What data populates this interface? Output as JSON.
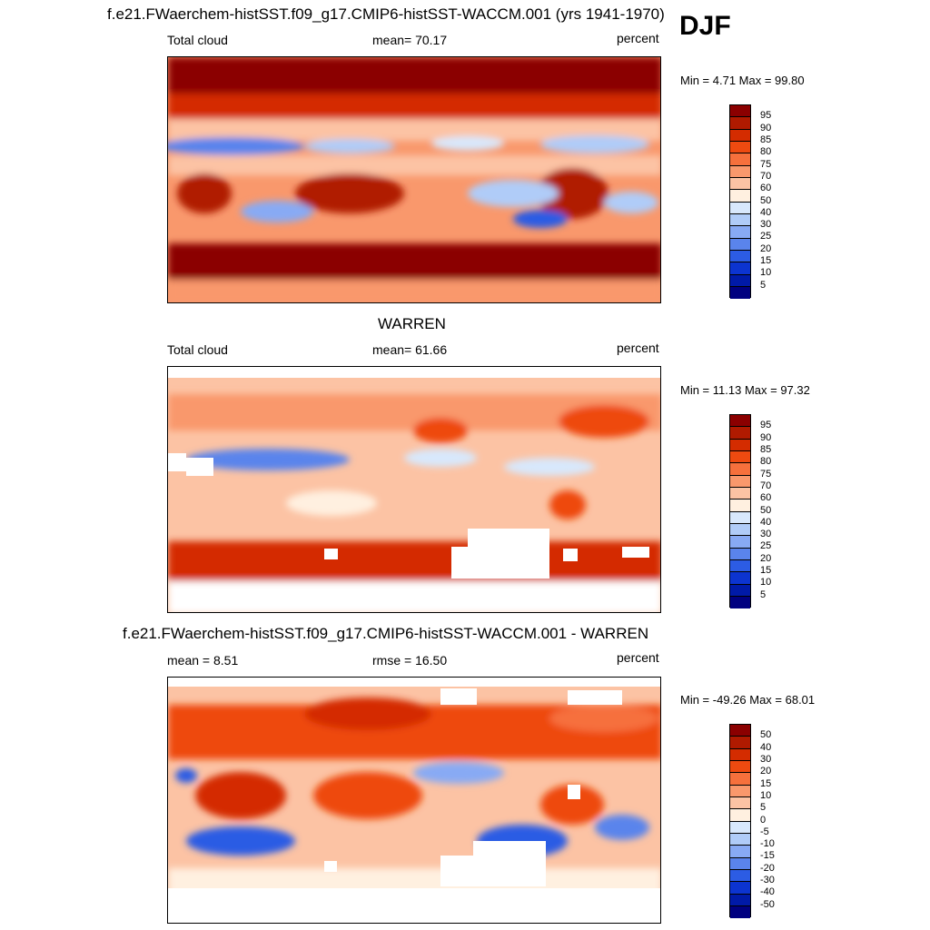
{
  "season": "DJF",
  "panels": [
    {
      "title": "f.e21.FWaerchem-histSST.f09_g17.CMIP6-histSST-WACCM.001 (yrs 1941-1970)",
      "left_label": "Total cloud",
      "center_label": "mean=  70.17",
      "right_label": "percent",
      "minmax": "Min =   4.71 Max =  99.80",
      "colorbar": {
        "levels": [
          "95",
          "90",
          "85",
          "80",
          "75",
          "70",
          "60",
          "50",
          "40",
          "30",
          "25",
          "20",
          "15",
          "10",
          "5"
        ],
        "colors": [
          "#8b0000",
          "#b01a00",
          "#d42c00",
          "#ee4a10",
          "#f6703c",
          "#f9986c",
          "#fcc3a4",
          "#fff0e0",
          "#d8e8fc",
          "#b0ccf8",
          "#88aaf4",
          "#5a84ec",
          "#2c5ce4",
          "#0c34d0",
          "#001aa8",
          "#000080"
        ]
      }
    },
    {
      "title": "WARREN",
      "left_label": "Total cloud",
      "center_label": "mean=  61.66",
      "right_label": "percent",
      "minmax": "Min =  11.13 Max =  97.32",
      "colorbar": {
        "levels": [
          "95",
          "90",
          "85",
          "80",
          "75",
          "70",
          "60",
          "50",
          "40",
          "30",
          "25",
          "20",
          "15",
          "10",
          "5"
        ],
        "colors": [
          "#8b0000",
          "#b01a00",
          "#d42c00",
          "#ee4a10",
          "#f6703c",
          "#f9986c",
          "#fcc3a4",
          "#fff0e0",
          "#d8e8fc",
          "#b0ccf8",
          "#88aaf4",
          "#5a84ec",
          "#2c5ce4",
          "#0c34d0",
          "#001aa8",
          "#000080"
        ]
      }
    },
    {
      "title": "f.e21.FWaerchem-histSST.f09_g17.CMIP6-histSST-WACCM.001 - WARREN",
      "left_label": "mean =   8.51",
      "center_label": "rmse =  16.50",
      "right_label": "percent",
      "minmax": "Min = -49.26 Max =  68.01",
      "colorbar": {
        "levels": [
          "50",
          "40",
          "30",
          "20",
          "15",
          "10",
          "5",
          "0",
          "-5",
          "-10",
          "-15",
          "-20",
          "-30",
          "-40",
          "-50"
        ],
        "colors": [
          "#8b0000",
          "#b01a00",
          "#d42c00",
          "#ee4a10",
          "#f6703c",
          "#f9986c",
          "#fcc3a4",
          "#fff0e0",
          "#d8e8fc",
          "#b0ccf8",
          "#88aaf4",
          "#5a84ec",
          "#2c5ce4",
          "#0c34d0",
          "#001aa8",
          "#000080"
        ]
      }
    }
  ]
}
